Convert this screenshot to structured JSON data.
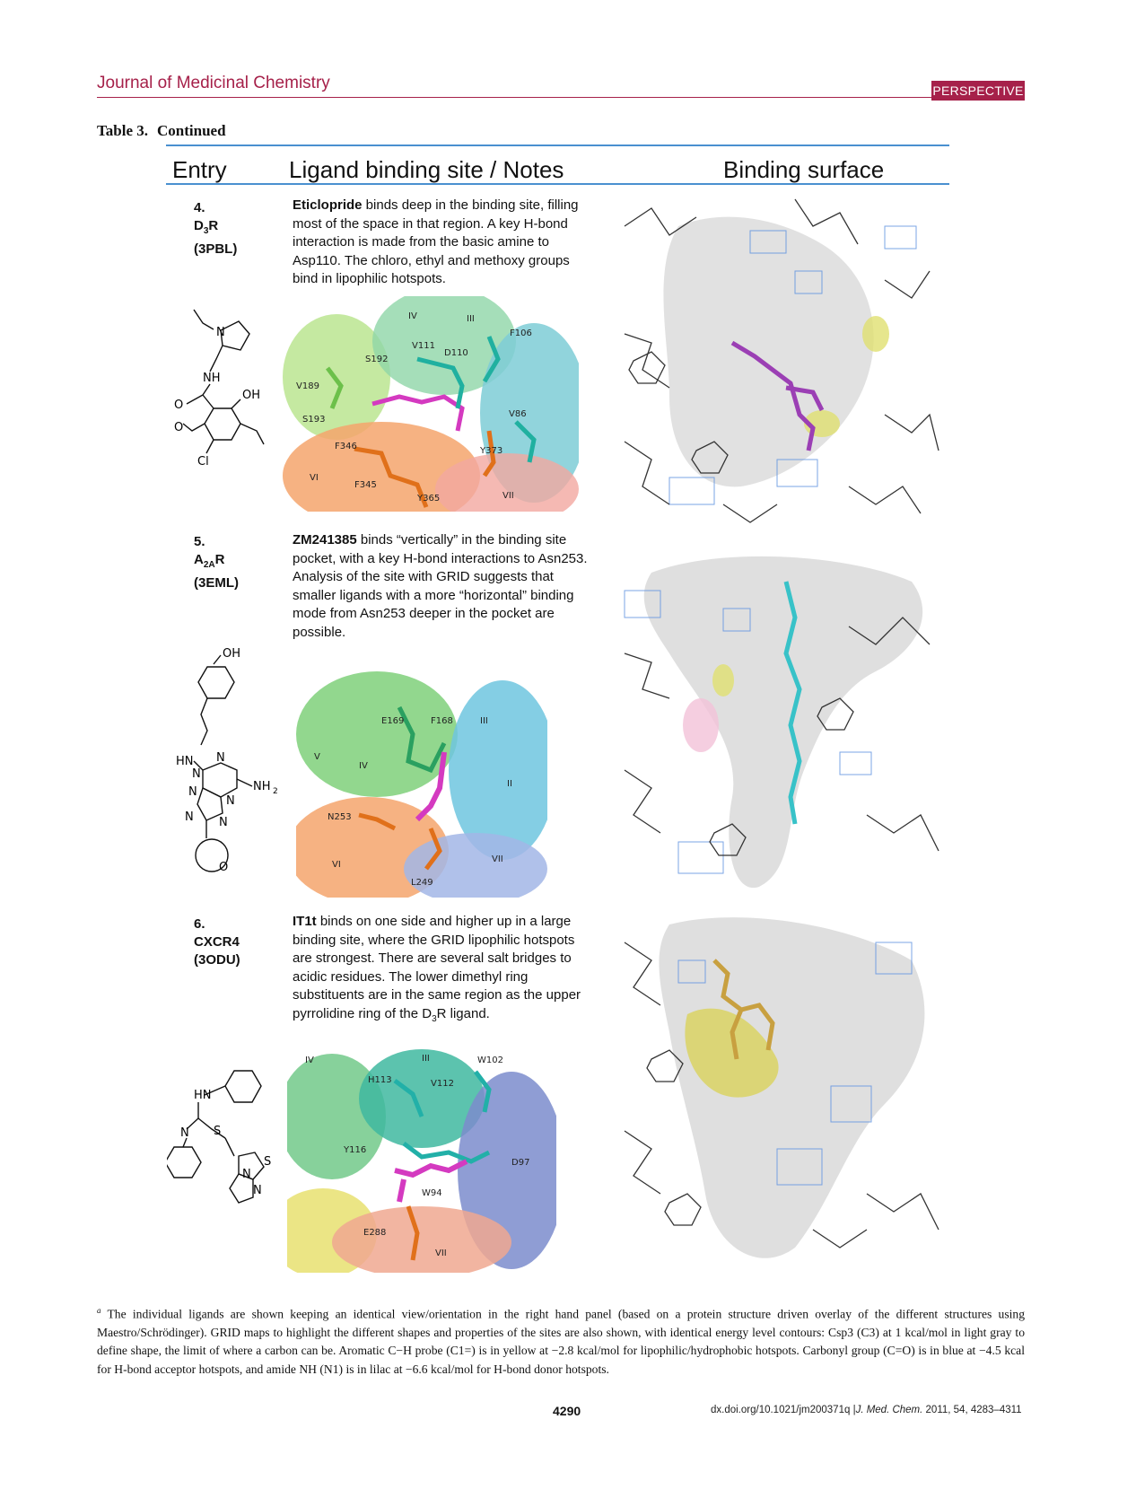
{
  "header": {
    "journal": "Journal of Medicinal Chemistry",
    "section": "PERSPECTIVE"
  },
  "table": {
    "label": "Table 3.",
    "status": "Continued"
  },
  "columns": {
    "entry": "Entry",
    "notes": "Ligand binding site / Notes",
    "surface": "Binding surface"
  },
  "entries": [
    {
      "number": "4.",
      "receptor_a": "D",
      "receptor_sub": "3",
      "receptor_b": "R",
      "pdb": "(3PBL)",
      "ligand": "Eticlopride",
      "note": " binds deep in the binding site, filling most of the space in that region. A key H-bond interaction is made from the basic amine to Asp110.  The chloro, ethyl and methoxy groups bind in lipophilic  hotspots.",
      "structure_labels": [
        "N",
        "NH",
        "O",
        "OH",
        "O",
        "Cl"
      ],
      "residue_labels": [
        "IV",
        "III",
        "V111",
        "D110",
        "F106",
        "S192",
        "V189",
        "V86",
        "S193",
        "F346",
        "Y373",
        "VI",
        "F345",
        "Y365",
        "VII"
      ]
    },
    {
      "number": "5.",
      "receptor_a": "A",
      "receptor_sub": "2A",
      "receptor_b": "R",
      "pdb": "(3EML)",
      "ligand": "ZM241385",
      "note": " binds “vertically” in the binding site pocket, with a key H-bond interactions to Asn253. Analysis of the site with GRID suggests that smaller ligands with a more “horizontal” binding mode from Asn253 deeper in the pocket are possible.",
      "structure_labels": [
        "OH",
        "HN",
        "N",
        "N",
        "NH",
        "2",
        "N",
        "N",
        "N",
        "N",
        "O"
      ],
      "residue_labels": [
        "E169",
        "F168",
        "III",
        "V",
        "IV",
        "II",
        "N253",
        "VI",
        "L249",
        "VII"
      ]
    },
    {
      "number": "6.",
      "receptor_a": "CXCR4",
      "receptor_sub": "",
      "receptor_b": "",
      "pdb": "(3ODU)",
      "ligand": "IT1t",
      "note_a": " binds on one side and higher up in a large binding site, where the GRID lipophilic hotspots are strongest. There are several salt bridges to acidic residues. The lower dimethyl ring substituents are in the same region as the upper pyrrolidine ring of the D",
      "note_sub": "3",
      "note_b": "R ligand.",
      "structure_labels": [
        "HN",
        "N",
        "S",
        "S",
        "N",
        "N"
      ],
      "residue_labels": [
        "IV",
        "III",
        "W102",
        "H113",
        "V112",
        "Y116",
        "D97",
        "W94",
        "E288",
        "VII"
      ]
    }
  ],
  "footnote": {
    "marker": "a",
    "text": " The individual ligands are shown keeping an identical view/orientation in the right hand panel (based on a protein structure driven overlay of the different structures using Maestro/Schrödinger). GRID maps to highlight the different shapes and properties of the sites are also shown, with identical energy level contours: Csp3 (C3) at 1 kcal/mol in light gray to define shape, the limit of where a carbon can be. Aromatic C−H probe (C1=) is in yellow at −2.8 kcal/mol for lipophilic/hydrophobic hotspots. Carbonyl group (C=O) is in blue at −4.5 kcal for H-bond acceptor hotspots, and amide NH (N1) is in lilac at −6.6 kcal/mol for H-bond donor hotspots."
  },
  "footer": {
    "page": "4290",
    "doi": "dx.doi.org/10.1021/jm200371q |",
    "journal_abbr": "J. Med. Chem.",
    "citation": " 2011, 54, 4283–4311"
  },
  "colors": {
    "brand": "#a6214a",
    "rule": "#4a90d0"
  }
}
